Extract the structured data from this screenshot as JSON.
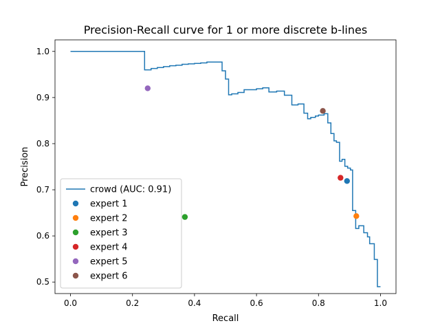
{
  "chart_data": {
    "type": "line",
    "title": "Precision-Recall curve for 1 or more discrete b-lines",
    "xlabel": "Recall",
    "ylabel": "Precision",
    "xlim": [
      -0.05,
      1.05
    ],
    "ylim": [
      0.475,
      1.025
    ],
    "xticks": [
      0.0,
      0.2,
      0.4,
      0.6,
      0.8,
      1.0
    ],
    "xtick_labels": [
      "0.0",
      "0.2",
      "0.4",
      "0.6",
      "0.8",
      "1.0"
    ],
    "yticks": [
      0.5,
      0.6,
      0.7,
      0.8,
      0.9,
      1.0
    ],
    "ytick_labels": [
      "0.5",
      "0.6",
      "0.7",
      "0.8",
      "0.9",
      "1.0"
    ],
    "grid": false,
    "legend_position": "lower-left",
    "series": [
      {
        "name": "crowd (AUC: 0.91)",
        "kind": "step-line",
        "color": "#1f77b4",
        "points": [
          [
            0.0,
            1.0
          ],
          [
            0.239,
            1.0
          ],
          [
            0.239,
            0.96
          ],
          [
            0.26,
            0.96
          ],
          [
            0.26,
            0.963
          ],
          [
            0.28,
            0.963
          ],
          [
            0.28,
            0.965
          ],
          [
            0.3,
            0.965
          ],
          [
            0.3,
            0.967
          ],
          [
            0.32,
            0.967
          ],
          [
            0.32,
            0.969
          ],
          [
            0.34,
            0.969
          ],
          [
            0.34,
            0.97
          ],
          [
            0.36,
            0.97
          ],
          [
            0.36,
            0.972
          ],
          [
            0.38,
            0.972
          ],
          [
            0.38,
            0.973
          ],
          [
            0.4,
            0.973
          ],
          [
            0.4,
            0.974
          ],
          [
            0.42,
            0.974
          ],
          [
            0.42,
            0.975
          ],
          [
            0.44,
            0.975
          ],
          [
            0.44,
            0.977
          ],
          [
            0.489,
            0.977
          ],
          [
            0.489,
            0.958
          ],
          [
            0.5,
            0.958
          ],
          [
            0.5,
            0.94
          ],
          [
            0.51,
            0.94
          ],
          [
            0.51,
            0.906
          ],
          [
            0.52,
            0.906
          ],
          [
            0.52,
            0.908
          ],
          [
            0.54,
            0.908
          ],
          [
            0.54,
            0.911
          ],
          [
            0.56,
            0.911
          ],
          [
            0.56,
            0.917
          ],
          [
            0.6,
            0.917
          ],
          [
            0.6,
            0.919
          ],
          [
            0.62,
            0.919
          ],
          [
            0.62,
            0.921
          ],
          [
            0.64,
            0.921
          ],
          [
            0.64,
            0.912
          ],
          [
            0.665,
            0.912
          ],
          [
            0.665,
            0.914
          ],
          [
            0.69,
            0.914
          ],
          [
            0.69,
            0.905
          ],
          [
            0.714,
            0.905
          ],
          [
            0.714,
            0.884
          ],
          [
            0.734,
            0.884
          ],
          [
            0.734,
            0.886
          ],
          [
            0.753,
            0.886
          ],
          [
            0.753,
            0.866
          ],
          [
            0.765,
            0.866
          ],
          [
            0.765,
            0.854
          ],
          [
            0.775,
            0.854
          ],
          [
            0.775,
            0.857
          ],
          [
            0.79,
            0.857
          ],
          [
            0.79,
            0.86
          ],
          [
            0.8,
            0.86
          ],
          [
            0.8,
            0.862
          ],
          [
            0.818,
            0.862
          ],
          [
            0.818,
            0.865
          ],
          [
            0.83,
            0.865
          ],
          [
            0.83,
            0.845
          ],
          [
            0.84,
            0.845
          ],
          [
            0.84,
            0.822
          ],
          [
            0.85,
            0.822
          ],
          [
            0.85,
            0.806
          ],
          [
            0.858,
            0.806
          ],
          [
            0.858,
            0.803
          ],
          [
            0.868,
            0.803
          ],
          [
            0.868,
            0.762
          ],
          [
            0.876,
            0.762
          ],
          [
            0.876,
            0.766
          ],
          [
            0.885,
            0.766
          ],
          [
            0.885,
            0.751
          ],
          [
            0.894,
            0.751
          ],
          [
            0.894,
            0.747
          ],
          [
            0.903,
            0.747
          ],
          [
            0.903,
            0.743
          ],
          [
            0.91,
            0.743
          ],
          [
            0.91,
            0.655
          ],
          [
            0.92,
            0.655
          ],
          [
            0.92,
            0.616
          ],
          [
            0.93,
            0.616
          ],
          [
            0.93,
            0.622
          ],
          [
            0.946,
            0.622
          ],
          [
            0.946,
            0.607
          ],
          [
            0.958,
            0.607
          ],
          [
            0.958,
            0.598
          ],
          [
            0.965,
            0.598
          ],
          [
            0.965,
            0.583
          ],
          [
            0.98,
            0.583
          ],
          [
            0.98,
            0.549
          ],
          [
            0.99,
            0.549
          ],
          [
            0.99,
            0.49
          ],
          [
            1.0,
            0.49
          ]
        ]
      },
      {
        "name": "expert 1",
        "kind": "point",
        "color": "#1f77b4",
        "x": 0.892,
        "y": 0.719
      },
      {
        "name": "expert 2",
        "kind": "point",
        "color": "#ff7f0e",
        "x": 0.922,
        "y": 0.643
      },
      {
        "name": "expert 3",
        "kind": "point",
        "color": "#2ca02c",
        "x": 0.369,
        "y": 0.641
      },
      {
        "name": "expert 4",
        "kind": "point",
        "color": "#d62728",
        "x": 0.871,
        "y": 0.726
      },
      {
        "name": "expert 5",
        "kind": "point",
        "color": "#9467bd",
        "x": 0.249,
        "y": 0.92
      },
      {
        "name": "expert 6",
        "kind": "point",
        "color": "#8c564b",
        "x": 0.814,
        "y": 0.871
      }
    ]
  }
}
